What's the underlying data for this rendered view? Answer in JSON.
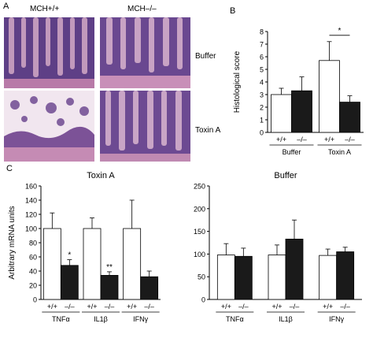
{
  "panel_a": {
    "letter": "A",
    "column_headers": [
      "MCH+/+",
      "MCH–/–"
    ],
    "row_labels": [
      "Buffer",
      "Toxin A"
    ]
  },
  "panel_b": {
    "letter": "B"
  },
  "panel_c": {
    "letter": "C"
  },
  "colors": {
    "wt_bar": "#ffffff",
    "ko_bar": "#1a1a1a",
    "tissue_purple": "#7a4f9a",
    "tissue_pink": "#e3b7cf"
  },
  "chart_data": [
    {
      "id": "panel-b",
      "type": "bar",
      "ylabel": "Histological score",
      "ylim": [
        0,
        8
      ],
      "yticks": [
        0,
        1,
        2,
        3,
        4,
        5,
        6,
        7,
        8
      ],
      "groups": [
        {
          "label": "Buffer",
          "bars": [
            {
              "genotype": "+/+",
              "value": 3.0,
              "err": 0.5,
              "sig": ""
            },
            {
              "genotype": "–/–",
              "value": 3.3,
              "err": 1.1,
              "sig": ""
            }
          ]
        },
        {
          "label": "Toxin A",
          "bars": [
            {
              "genotype": "+/+",
              "value": 5.7,
              "err": 1.5,
              "sig": ""
            },
            {
              "genotype": "–/–",
              "value": 2.4,
              "err": 0.5,
              "sig": ""
            }
          ]
        }
      ],
      "bracket": {
        "group": 1,
        "text": "*"
      }
    },
    {
      "id": "panel-c-toxin",
      "type": "bar",
      "title": "Toxin A",
      "ylabel": "Arbitrary mRNA units",
      "ylim": [
        0,
        160
      ],
      "yticks": [
        0,
        20,
        40,
        60,
        80,
        100,
        120,
        140,
        160
      ],
      "groups": [
        {
          "label": "TNFα",
          "bars": [
            {
              "genotype": "+/+",
              "value": 100,
              "err": 22,
              "sig": ""
            },
            {
              "genotype": "–/–",
              "value": 48,
              "err": 8,
              "sig": "*"
            }
          ]
        },
        {
          "label": "IL1β",
          "bars": [
            {
              "genotype": "+/+",
              "value": 100,
              "err": 15,
              "sig": ""
            },
            {
              "genotype": "–/–",
              "value": 34,
              "err": 5,
              "sig": "**"
            }
          ]
        },
        {
          "label": "IFNγ",
          "bars": [
            {
              "genotype": "+/+",
              "value": 100,
              "err": 40,
              "sig": ""
            },
            {
              "genotype": "–/–",
              "value": 32,
              "err": 8,
              "sig": ""
            }
          ]
        }
      ]
    },
    {
      "id": "panel-c-buffer",
      "type": "bar",
      "title": "Buffer",
      "ylabel": "",
      "ylim": [
        0,
        250
      ],
      "yticks": [
        0,
        50,
        100,
        150,
        200,
        250
      ],
      "groups": [
        {
          "label": "TNFα",
          "bars": [
            {
              "genotype": "+/+",
              "value": 98,
              "err": 25,
              "sig": ""
            },
            {
              "genotype": "–/–",
              "value": 95,
              "err": 18,
              "sig": ""
            }
          ]
        },
        {
          "label": "IL1β",
          "bars": [
            {
              "genotype": "+/+",
              "value": 98,
              "err": 22,
              "sig": ""
            },
            {
              "genotype": "–/–",
              "value": 133,
              "err": 42,
              "sig": ""
            }
          ]
        },
        {
          "label": "IFNγ",
          "bars": [
            {
              "genotype": "+/+",
              "value": 97,
              "err": 14,
              "sig": ""
            },
            {
              "genotype": "–/–",
              "value": 105,
              "err": 10,
              "sig": ""
            }
          ]
        }
      ]
    }
  ]
}
